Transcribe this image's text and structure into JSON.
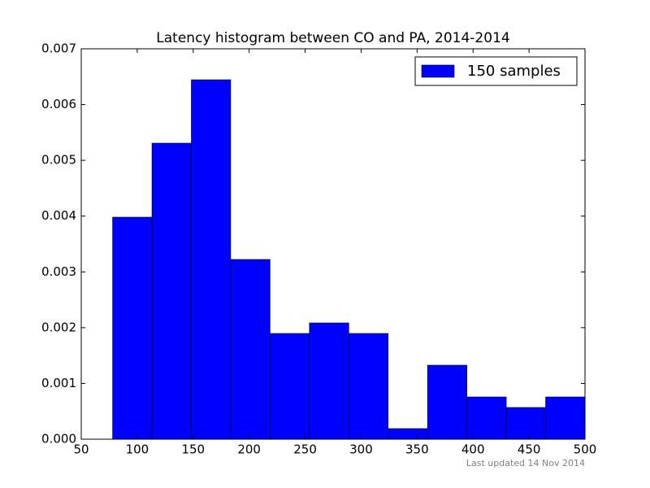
{
  "chart_data": {
    "type": "histogram",
    "title": "Latency histogram between CO and PA, 2014-2014",
    "bins": [
      78,
      113.17,
      148.33,
      183.5,
      218.67,
      253.83,
      289,
      324.17,
      359.33,
      394.5,
      429.67,
      464.83,
      500
    ],
    "series": [
      {
        "name": "150 samples",
        "color": "#0000ff",
        "values": [
          0.003981,
          0.005308,
          0.006445,
          0.003223,
          0.001896,
          0.002085,
          0.001896,
          0.00019,
          0.001327,
          0.000758,
          0.000569,
          0.000758
        ]
      }
    ],
    "xlim": [
      50,
      500
    ],
    "xticks": [
      50,
      100,
      150,
      200,
      250,
      300,
      350,
      400,
      450,
      500
    ],
    "ylim": [
      0,
      0.007
    ],
    "yticks": [
      {
        "value": 0,
        "label": "0.000"
      },
      0.001,
      0.002,
      0.003,
      0.004,
      0.005,
      0.006,
      0.007
    ],
    "legend": "upper right",
    "annotation": "Last updated 14 Nov 2014"
  }
}
